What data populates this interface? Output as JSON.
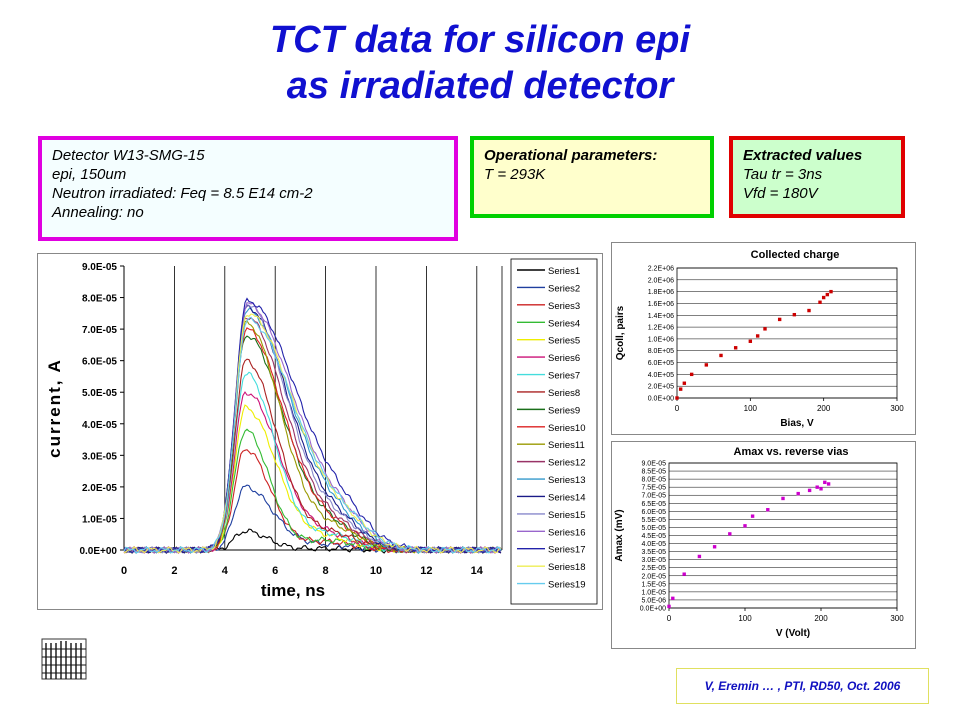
{
  "title": {
    "line1": "TCT data for silicon epi",
    "line2": "as irradiated detector"
  },
  "boxes": {
    "detector": {
      "lines": [
        "Detector W13-SMG-15",
        "epi, 150um",
        "Neutron irradiated: Feq = 8.5 E14 cm-2",
        "Annealing:  no"
      ]
    },
    "operational": {
      "heading": "Operational parameters:",
      "lines": [
        "T = 293K"
      ]
    },
    "extracted": {
      "heading": "Extracted values",
      "lines": [
        "Tau tr = 3ns",
        "Vfd = 180V"
      ]
    }
  },
  "colors": {
    "title": "#1010d0",
    "detector_border": "#e000e0",
    "detector_bg": "#f4feff",
    "operational_border": "#00d000",
    "operational_bg": "#ffffcc",
    "extracted_border": "#e00000",
    "extracted_bg": "#ccffcc"
  },
  "footer": "V, Eremin … , PTI, RD50, Oct. 2006",
  "chart_data": [
    {
      "type": "line",
      "title": "",
      "xlabel": "time, ns",
      "ylabel": "current, A",
      "xlim": [
        0,
        15
      ],
      "ylim": [
        0,
        9e-05
      ],
      "xticks": [
        "0",
        "2",
        "4",
        "6",
        "8",
        "10",
        "12",
        "14"
      ],
      "yticks": [
        "0.0E+00",
        "1.0E-05",
        "2.0E-05",
        "3.0E-05",
        "4.0E-05",
        "5.0E-05",
        "6.0E-05",
        "7.0E-05",
        "8.0E-05",
        "9.0E-05"
      ],
      "grid": "vertical",
      "legend": "right",
      "series": [
        {
          "name": "Series1",
          "color": "#000000",
          "peak": 6e-06
        },
        {
          "name": "Series2",
          "color": "#1f3f9f",
          "peak": 2e-05
        },
        {
          "name": "Series3",
          "color": "#cc2222",
          "peak": 3.2e-05
        },
        {
          "name": "Series4",
          "color": "#33bb33",
          "peak": 3.8e-05
        },
        {
          "name": "Series5",
          "color": "#eeee00",
          "peak": 4.5e-05
        },
        {
          "name": "Series6",
          "color": "#cc1177",
          "peak": 5e-05
        },
        {
          "name": "Series7",
          "color": "#44dddd",
          "peak": 5.6e-05
        },
        {
          "name": "Series8",
          "color": "#aa2222",
          "peak": 6e-05
        },
        {
          "name": "Series9",
          "color": "#1a6f1a",
          "peak": 6.8e-05
        },
        {
          "name": "Series10",
          "color": "#dd2222",
          "peak": 7e-05
        },
        {
          "name": "Series11",
          "color": "#999900",
          "peak": 7.2e-05
        },
        {
          "name": "Series12",
          "color": "#993366",
          "peak": 7.4e-05
        },
        {
          "name": "Series13",
          "color": "#3399cc",
          "peak": 7.6e-05
        },
        {
          "name": "Series14",
          "color": "#1a1a88",
          "peak": 7.7e-05
        },
        {
          "name": "Series15",
          "color": "#8888cc",
          "peak": 7.8e-05
        },
        {
          "name": "Series16",
          "color": "#9966cc",
          "peak": 7.8e-05
        },
        {
          "name": "Series17",
          "color": "#2222aa",
          "peak": 7.9e-05
        },
        {
          "name": "Series18",
          "color": "#eeee55",
          "peak": 7.5e-05
        },
        {
          "name": "Series19",
          "color": "#66ccee",
          "peak": 7.3e-05
        }
      ]
    },
    {
      "type": "scatter",
      "title": "Collected charge",
      "xlabel": "Bias, V",
      "ylabel": "Qcoll, pairs",
      "xlim": [
        0,
        300
      ],
      "ylim": [
        0,
        2200000.0
      ],
      "xticks": [
        "0",
        "100",
        "200",
        "300"
      ],
      "yticks": [
        "0.0E+00",
        "2.0E+05",
        "4.0E+05",
        "6.0E+05",
        "8.0E+05",
        "1.0E+06",
        "1.2E+06",
        "1.4E+06",
        "1.6E+06",
        "1.8E+06",
        "2.0E+06",
        "2.2E+06"
      ],
      "grid": "horizontal",
      "color": "#cc0000",
      "x": [
        0,
        5,
        10,
        20,
        40,
        60,
        80,
        100,
        110,
        120,
        140,
        160,
        180,
        195,
        200,
        205,
        210
      ],
      "y": [
        0,
        150000,
        250000,
        400000,
        560000,
        720000,
        850000,
        960000,
        1050000,
        1170000,
        1330000,
        1410000,
        1480000,
        1620000,
        1700000,
        1750000,
        1800000
      ]
    },
    {
      "type": "scatter",
      "title": "Amax vs. reverse vias",
      "xlabel": "V (Volt)",
      "ylabel": "Amax (mV)",
      "xlim": [
        0,
        300
      ],
      "ylim": [
        0,
        9e-05
      ],
      "xticks": [
        "0",
        "100",
        "200",
        "300"
      ],
      "yticks": [
        "0.0E+00",
        "5.0E-06",
        "1.0E-05",
        "1.5E-05",
        "2.0E-05",
        "2.5E-05",
        "3.0E-05",
        "3.5E-05",
        "4.0E-05",
        "4.5E-05",
        "5.0E-05",
        "5.5E-05",
        "6.0E-05",
        "6.5E-05",
        "7.0E-05",
        "7.5E-05",
        "8.0E-05",
        "8.5E-05",
        "9.0E-05"
      ],
      "grid": "horizontal",
      "color": "#cc00cc",
      "x": [
        0,
        5,
        20,
        40,
        60,
        80,
        100,
        110,
        130,
        150,
        170,
        185,
        195,
        200,
        205,
        210
      ],
      "y": [
        1e-06,
        6e-06,
        2.1e-05,
        3.2e-05,
        3.8e-05,
        4.6e-05,
        5.1e-05,
        5.7e-05,
        6.1e-05,
        6.8e-05,
        7.1e-05,
        7.3e-05,
        7.5e-05,
        7.4e-05,
        7.8e-05,
        7.7e-05
      ]
    }
  ]
}
